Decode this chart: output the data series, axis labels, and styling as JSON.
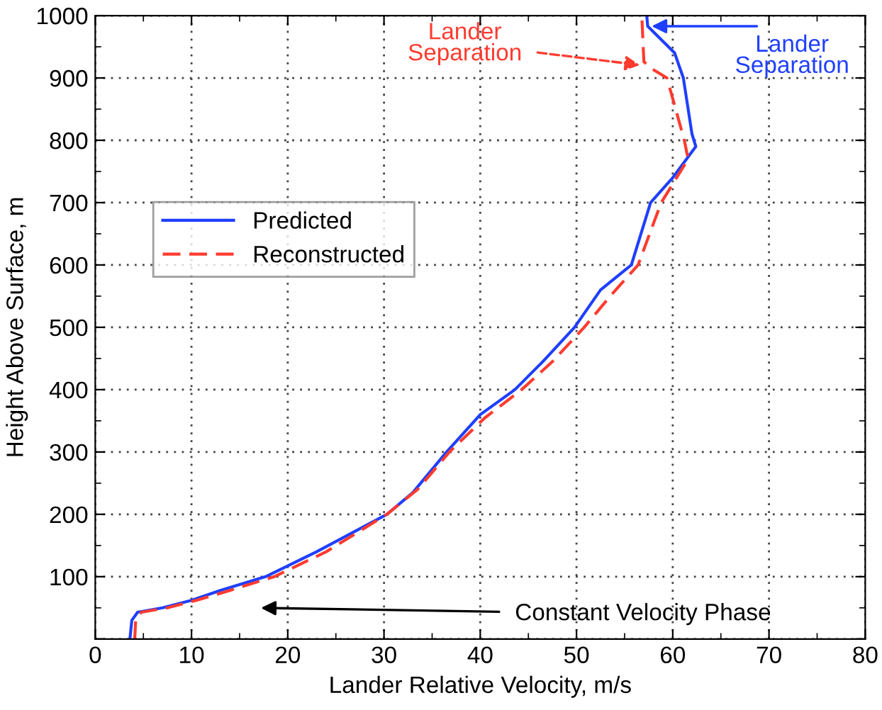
{
  "chart_data": {
    "type": "line",
    "xlabel": "Lander Relative Velocity, m/s",
    "ylabel": "Height Above Surface, m",
    "xlim": [
      0,
      80
    ],
    "xticks": [
      0,
      10,
      20,
      30,
      40,
      50,
      60,
      70,
      80
    ],
    "ylim": [
      0,
      1000
    ],
    "yticks": [
      {
        "value": 0,
        "label": null
      },
      100,
      200,
      300,
      400,
      500,
      600,
      700,
      800,
      900,
      1000
    ],
    "grid": true,
    "legend": "left",
    "tick_labels": true,
    "series": [
      {
        "name": "Predicted",
        "color": "#1f3fff",
        "line_style": "solid",
        "x": [
          3.6,
          3.8,
          4.4,
          7,
          10,
          13,
          17.7,
          23,
          30.3,
          33,
          36.5,
          40,
          43.6,
          46.5,
          49.8,
          52.5,
          55.7,
          57.7,
          60,
          62.4,
          62,
          61.1,
          60.2,
          57.4,
          57.3
        ],
        "values": [
          0,
          30,
          43,
          50,
          62,
          78,
          100,
          140,
          200,
          235,
          300,
          360,
          400,
          445,
          500,
          560,
          600,
          700,
          740,
          790,
          810,
          900,
          940,
          983,
          1000
        ]
      },
      {
        "name": "Reconstructed",
        "color": "#ff3b2f",
        "line_style": "dashed",
        "x": [
          4.1,
          4.2,
          4.8,
          7.5,
          10.5,
          14,
          18.6,
          24,
          30.3,
          33.5,
          36.8,
          40.5,
          44.3,
          47.5,
          50.8,
          53.5,
          56.4,
          58.8,
          61.6,
          61.2,
          59.4,
          57.8,
          57.0,
          56.8,
          56.8
        ],
        "values": [
          0,
          30,
          43,
          50,
          62,
          78,
          100,
          140,
          200,
          240,
          300,
          355,
          400,
          445,
          500,
          550,
          600,
          700,
          770,
          800,
          900,
          915,
          926,
          995,
          1000
        ]
      }
    ],
    "annotations": [
      {
        "text": "Lander\nSeparation",
        "x": 57.0,
        "y": 920
      },
      {
        "text": "Lander\nSeparation",
        "x": 57.4,
        "y": 983
      },
      "Constant Velocity Phase"
    ]
  }
}
